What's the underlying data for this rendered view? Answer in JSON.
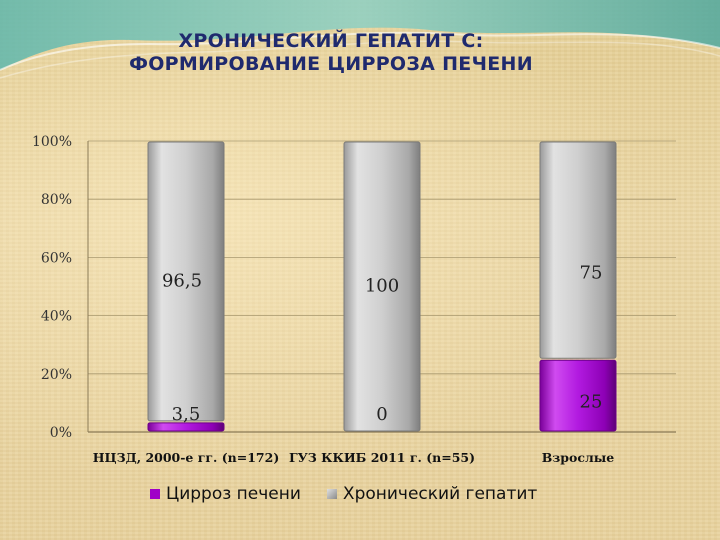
{
  "title": {
    "line1": "ХРОНИЧЕСКИЙ ГЕПАТИТ С:",
    "line2": "ФОРМИРОВАНИЕ ЦИРРОЗА ПЕЧЕНИ"
  },
  "colors": {
    "cirrhosis": "#a000c8",
    "hepatitis": "#c8c8c8",
    "title": "#1f2a6e"
  },
  "chart_data": {
    "type": "bar",
    "stacked": true,
    "categories": [
      "НЦЗД, 2000-е гг. (n=172)",
      "ГУЗ ККИБ 2011 г. (n=55)",
      "Взрослые"
    ],
    "series": [
      {
        "name": "Цирроз печени",
        "values": [
          3.5,
          0,
          25
        ],
        "labels": [
          "3,5",
          "0",
          "25"
        ]
      },
      {
        "name": "Хронический гепатит",
        "values": [
          96.5,
          100,
          75
        ],
        "labels": [
          "96,5",
          "100",
          "75"
        ]
      }
    ],
    "ylim": [
      0,
      100
    ],
    "yticks": [
      "0%",
      "20%",
      "40%",
      "60%",
      "80%",
      "100%"
    ],
    "grid": true,
    "legend_position": "bottom"
  }
}
